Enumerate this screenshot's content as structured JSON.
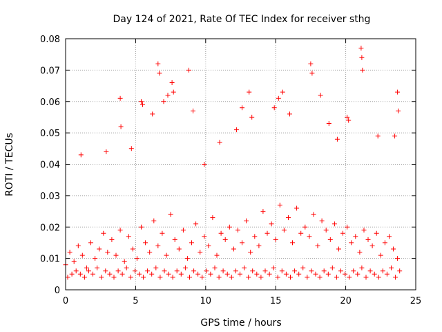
{
  "chart_data": {
    "type": "scatter",
    "title": "Day 124 of 2021, Rate Of TEC Index for receiver sthg",
    "xlabel": "GPS time / hours",
    "ylabel": "ROTI / TECUs",
    "xlim": [
      0,
      25
    ],
    "ylim": [
      0,
      0.08
    ],
    "x_ticks": [
      0,
      5,
      10,
      15,
      20,
      25
    ],
    "x_tick_labels": [
      "0",
      "5",
      "10",
      "15",
      "20",
      "25"
    ],
    "y_ticks": [
      0,
      0.01,
      0.02,
      0.03,
      0.04,
      0.05,
      0.06,
      0.07,
      0.08
    ],
    "y_tick_labels": [
      "0",
      "0.01",
      "0.02",
      "0.03",
      "0.04",
      "0.05",
      "0.06",
      "0.07",
      "0.08"
    ],
    "grid": true,
    "marker": "+",
    "marker_color": "#ff0000",
    "series": [
      {
        "name": "ROTI",
        "x": [
          0.0,
          0.3,
          0.6,
          0.9,
          1.2,
          1.5,
          1.8,
          2.1,
          2.4,
          2.7,
          3.0,
          3.3,
          3.6,
          3.9,
          4.2,
          4.5,
          4.8,
          5.1,
          5.4,
          5.7,
          6.0,
          6.3,
          6.6,
          6.9,
          7.2,
          7.5,
          7.8,
          8.1,
          8.4,
          8.7,
          9.0,
          9.3,
          9.6,
          9.9,
          10.2,
          10.5,
          10.8,
          11.1,
          11.4,
          11.7,
          12.0,
          12.3,
          12.6,
          12.9,
          13.2,
          13.5,
          13.8,
          14.1,
          14.4,
          14.7,
          15.0,
          15.3,
          15.6,
          15.9,
          16.2,
          16.5,
          16.8,
          17.1,
          17.4,
          17.7,
          18.0,
          18.3,
          18.6,
          18.9,
          19.2,
          19.5,
          19.8,
          20.1,
          20.4,
          20.7,
          21.0,
          21.3,
          21.6,
          21.9,
          22.2,
          22.5,
          22.8,
          23.1,
          23.4,
          23.7,
          0.15,
          0.45,
          0.75,
          1.05,
          1.35,
          1.65,
          1.95,
          2.25,
          2.55,
          2.85,
          3.15,
          3.45,
          3.75,
          4.05,
          4.35,
          4.65,
          4.95,
          5.25,
          5.55,
          5.85,
          6.15,
          6.45,
          6.75,
          7.05,
          7.35,
          7.65,
          7.95,
          8.25,
          8.55,
          8.85,
          9.15,
          9.45,
          9.75,
          10.05,
          10.35,
          10.65,
          10.95,
          11.25,
          11.55,
          11.85,
          12.15,
          12.45,
          12.75,
          13.05,
          13.35,
          13.65,
          13.95,
          14.25,
          14.55,
          14.85,
          15.15,
          15.45,
          15.75,
          16.05,
          16.35,
          16.65,
          16.95,
          17.25,
          17.55,
          17.85,
          18.15,
          18.45,
          18.75,
          19.05,
          19.35,
          19.65,
          19.95,
          20.25,
          20.55,
          20.85,
          21.15,
          21.45,
          21.75,
          22.05,
          22.35,
          22.65,
          22.95,
          23.25,
          23.55,
          23.85,
          3.9,
          3.95,
          6.6,
          6.7,
          7.0,
          7.3,
          7.6,
          7.7,
          8.8,
          9.1,
          13.1,
          13.3,
          14.9,
          15.2,
          15.5,
          17.5,
          17.6,
          18.2,
          20.1,
          20.2,
          21.1,
          21.15,
          21.2,
          23.7,
          23.75,
          12.6,
          12.2,
          5.4,
          5.5,
          11.0,
          16.0,
          19.4,
          2.9,
          1.1,
          4.7,
          6.2,
          9.9,
          18.8,
          22.3,
          23.5
        ],
        "y": [
          0.008,
          0.012,
          0.009,
          0.014,
          0.011,
          0.007,
          0.015,
          0.01,
          0.013,
          0.018,
          0.012,
          0.016,
          0.011,
          0.019,
          0.009,
          0.017,
          0.013,
          0.01,
          0.02,
          0.015,
          0.012,
          0.022,
          0.014,
          0.018,
          0.011,
          0.024,
          0.016,
          0.013,
          0.019,
          0.01,
          0.015,
          0.021,
          0.012,
          0.017,
          0.014,
          0.023,
          0.011,
          0.018,
          0.016,
          0.02,
          0.013,
          0.019,
          0.015,
          0.022,
          0.012,
          0.017,
          0.014,
          0.025,
          0.018,
          0.021,
          0.016,
          0.027,
          0.019,
          0.023,
          0.015,
          0.026,
          0.018,
          0.02,
          0.017,
          0.024,
          0.014,
          0.022,
          0.019,
          0.016,
          0.021,
          0.013,
          0.018,
          0.02,
          0.015,
          0.017,
          0.012,
          0.019,
          0.016,
          0.014,
          0.018,
          0.011,
          0.015,
          0.017,
          0.013,
          0.01,
          0.004,
          0.005,
          0.006,
          0.005,
          0.004,
          0.006,
          0.005,
          0.007,
          0.004,
          0.006,
          0.005,
          0.004,
          0.006,
          0.005,
          0.007,
          0.004,
          0.006,
          0.005,
          0.004,
          0.006,
          0.005,
          0.007,
          0.004,
          0.006,
          0.005,
          0.004,
          0.006,
          0.005,
          0.007,
          0.004,
          0.006,
          0.005,
          0.004,
          0.006,
          0.005,
          0.007,
          0.004,
          0.006,
          0.005,
          0.004,
          0.006,
          0.005,
          0.007,
          0.004,
          0.006,
          0.005,
          0.004,
          0.006,
          0.005,
          0.007,
          0.004,
          0.006,
          0.005,
          0.004,
          0.006,
          0.005,
          0.007,
          0.004,
          0.006,
          0.005,
          0.004,
          0.006,
          0.005,
          0.007,
          0.004,
          0.006,
          0.005,
          0.004,
          0.006,
          0.005,
          0.007,
          0.004,
          0.006,
          0.005,
          0.004,
          0.006,
          0.005,
          0.007,
          0.004,
          0.006,
          0.061,
          0.052,
          0.072,
          0.069,
          0.06,
          0.062,
          0.066,
          0.063,
          0.07,
          0.057,
          0.063,
          0.055,
          0.058,
          0.061,
          0.063,
          0.072,
          0.069,
          0.062,
          0.055,
          0.054,
          0.077,
          0.074,
          0.07,
          0.063,
          0.057,
          0.058,
          0.051,
          0.06,
          0.059,
          0.047,
          0.056,
          0.048,
          0.044,
          0.043,
          0.045,
          0.056,
          0.04,
          0.053,
          0.049,
          0.049
        ]
      }
    ]
  }
}
